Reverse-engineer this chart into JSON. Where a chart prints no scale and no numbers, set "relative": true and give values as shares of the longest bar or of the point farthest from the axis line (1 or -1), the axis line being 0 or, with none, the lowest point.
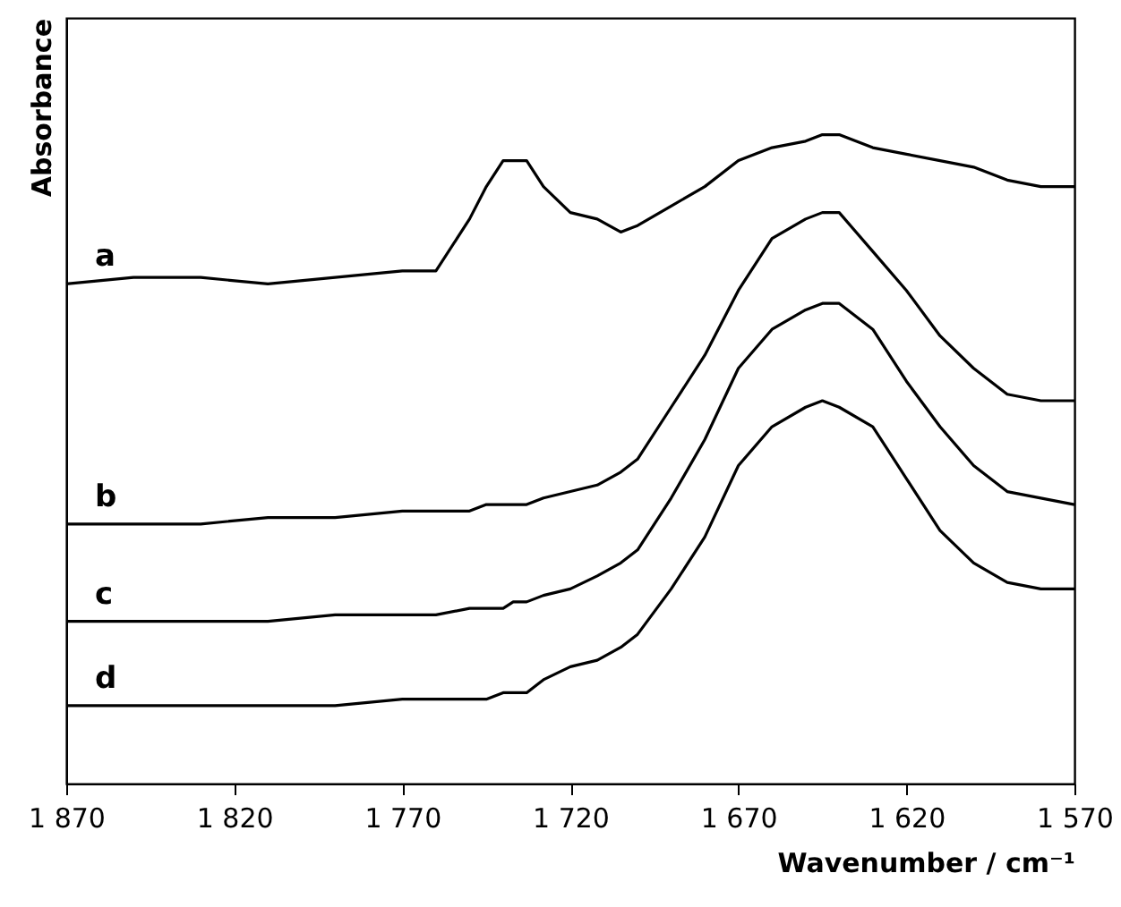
{
  "chart_data": {
    "type": "line",
    "relative": true,
    "xlabel": "Wavenumber / cm⁻¹",
    "ylabel": "Absorbance",
    "x": [
      1870,
      1850,
      1830,
      1810,
      1790,
      1770,
      1760,
      1750,
      1745,
      1740,
      1737,
      1733,
      1728,
      1720,
      1712,
      1705,
      1700,
      1690,
      1680,
      1670,
      1660,
      1650,
      1645,
      1640,
      1630,
      1620,
      1610,
      1600,
      1590,
      1580,
      1570
    ],
    "xlim": [
      1870,
      1570
    ],
    "xticks": [
      {
        "value": 1870,
        "label": "1 870"
      },
      {
        "value": 1820,
        "label": "1 820"
      },
      {
        "value": 1770,
        "label": "1 770"
      },
      {
        "value": 1720,
        "label": "1 720"
      },
      {
        "value": 1670,
        "label": "1 670"
      },
      {
        "value": 1620,
        "label": "1 620"
      },
      {
        "value": 1570,
        "label": "1 570"
      }
    ],
    "grid": false,
    "marker": "none",
    "line_style": "solid",
    "series": [
      {
        "name": "a",
        "color": "#000000",
        "values": [
          0.77,
          0.78,
          0.78,
          0.77,
          0.78,
          0.79,
          0.79,
          0.87,
          0.92,
          0.96,
          0.96,
          0.96,
          0.92,
          0.88,
          0.87,
          0.85,
          0.86,
          0.89,
          0.92,
          0.96,
          0.98,
          0.99,
          1.0,
          1.0,
          0.98,
          0.97,
          0.96,
          0.95,
          0.93,
          0.92,
          0.92
        ]
      },
      {
        "name": "b",
        "color": "#000000",
        "values": [
          0.4,
          0.4,
          0.4,
          0.41,
          0.41,
          0.42,
          0.42,
          0.42,
          0.43,
          0.43,
          0.43,
          0.43,
          0.44,
          0.45,
          0.46,
          0.48,
          0.5,
          0.58,
          0.66,
          0.76,
          0.84,
          0.87,
          0.88,
          0.88,
          0.82,
          0.76,
          0.69,
          0.64,
          0.6,
          0.59,
          0.59
        ]
      },
      {
        "name": "c",
        "color": "#000000",
        "values": [
          0.25,
          0.25,
          0.25,
          0.25,
          0.26,
          0.26,
          0.26,
          0.27,
          0.27,
          0.27,
          0.28,
          0.28,
          0.29,
          0.3,
          0.32,
          0.34,
          0.36,
          0.44,
          0.53,
          0.64,
          0.7,
          0.73,
          0.74,
          0.74,
          0.7,
          0.62,
          0.55,
          0.49,
          0.45,
          0.44,
          0.43
        ]
      },
      {
        "name": "d",
        "color": "#000000",
        "values": [
          0.12,
          0.12,
          0.12,
          0.12,
          0.12,
          0.13,
          0.13,
          0.13,
          0.13,
          0.14,
          0.14,
          0.14,
          0.16,
          0.18,
          0.19,
          0.21,
          0.23,
          0.3,
          0.38,
          0.49,
          0.55,
          0.58,
          0.59,
          0.58,
          0.55,
          0.47,
          0.39,
          0.34,
          0.31,
          0.3,
          0.3
        ]
      }
    ]
  }
}
